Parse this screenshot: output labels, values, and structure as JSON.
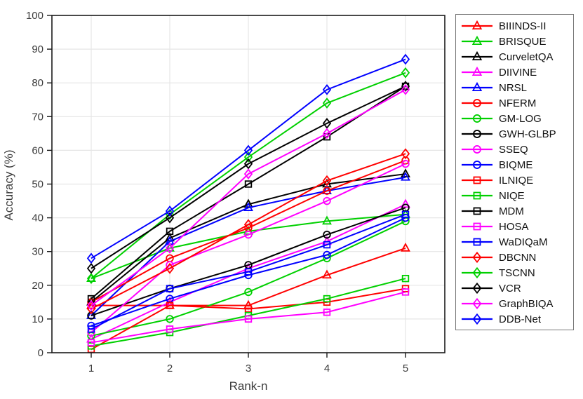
{
  "figure": {
    "xlabel": "Rank-n",
    "ylabel": "Accuracy (%)"
  },
  "chart_data": {
    "type": "line",
    "x": [
      1,
      2,
      3,
      4,
      5
    ],
    "xlabel": "Rank-n",
    "ylabel": "Accuracy (%)",
    "xlim": [
      0.5,
      5.5
    ],
    "ylim": [
      0,
      100
    ],
    "x_ticks": [
      1,
      2,
      3,
      4,
      5
    ],
    "y_ticks": [
      0,
      10,
      20,
      30,
      40,
      50,
      60,
      70,
      80,
      90,
      100
    ],
    "grid": "on",
    "legend_position": "right-outside",
    "series": [
      {
        "name": "BIIINDS-II",
        "color": "#ff0000",
        "marker": "triangle",
        "values": [
          14,
          14,
          14,
          23,
          31
        ]
      },
      {
        "name": "BRISQUE",
        "color": "#00d000",
        "marker": "triangle",
        "values": [
          22,
          31,
          36,
          39,
          41
        ]
      },
      {
        "name": "CurveletQA",
        "color": "#000000",
        "marker": "triangle",
        "values": [
          15,
          34,
          44,
          50,
          53
        ]
      },
      {
        "name": "DIIVINE",
        "color": "#ff00ff",
        "marker": "triangle",
        "values": [
          4,
          15,
          25,
          33,
          44
        ]
      },
      {
        "name": "NRSL",
        "color": "#0000ff",
        "marker": "triangle",
        "values": [
          11,
          33,
          43,
          48,
          52
        ]
      },
      {
        "name": "NFERM",
        "color": "#ff0000",
        "marker": "circle",
        "values": [
          15,
          28,
          37,
          48,
          57
        ]
      },
      {
        "name": "GM-LOG",
        "color": "#00d000",
        "marker": "circle",
        "values": [
          5,
          10,
          18,
          28,
          39
        ]
      },
      {
        "name": "GWH-GLBP",
        "color": "#000000",
        "marker": "circle",
        "values": [
          11,
          19,
          26,
          35,
          43
        ]
      },
      {
        "name": "SSEQ",
        "color": "#ff00ff",
        "marker": "circle",
        "values": [
          6,
          26,
          35,
          45,
          56
        ]
      },
      {
        "name": "BIQME",
        "color": "#0000ff",
        "marker": "circle",
        "values": [
          8,
          16,
          23,
          29,
          40
        ]
      },
      {
        "name": "ILNIQE",
        "color": "#ff0000",
        "marker": "square",
        "values": [
          1,
          14,
          13,
          15,
          19
        ]
      },
      {
        "name": "NIQE",
        "color": "#00d000",
        "marker": "square",
        "values": [
          2,
          6,
          11,
          16,
          22
        ]
      },
      {
        "name": "MDM",
        "color": "#000000",
        "marker": "square",
        "values": [
          16,
          36,
          50,
          64,
          79
        ]
      },
      {
        "name": "HOSA",
        "color": "#ff00ff",
        "marker": "square",
        "values": [
          3,
          7,
          10,
          12,
          18
        ]
      },
      {
        "name": "WaDIQaM",
        "color": "#0000ff",
        "marker": "square",
        "values": [
          7,
          19,
          24,
          32,
          41
        ]
      },
      {
        "name": "DBCNN",
        "color": "#ff0000",
        "marker": "diamond",
        "values": [
          13,
          25,
          38,
          51,
          59
        ]
      },
      {
        "name": "TSCNN",
        "color": "#00d000",
        "marker": "diamond",
        "values": [
          22,
          41,
          58,
          74,
          83
        ]
      },
      {
        "name": "VCR",
        "color": "#000000",
        "marker": "diamond",
        "values": [
          25,
          40,
          56,
          68,
          79
        ]
      },
      {
        "name": "GraphBIQA",
        "color": "#ff00ff",
        "marker": "diamond",
        "values": [
          14,
          31,
          53,
          65,
          78
        ]
      },
      {
        "name": "DDB-Net",
        "color": "#0000ff",
        "marker": "diamond",
        "values": [
          28,
          42,
          60,
          78,
          87
        ]
      }
    ]
  },
  "style_colors": {
    "grid": "#e6e6e6",
    "axis_box": "#1a1a1a",
    "tick_text": "#3b3b3b",
    "legend_border": "#777777"
  }
}
